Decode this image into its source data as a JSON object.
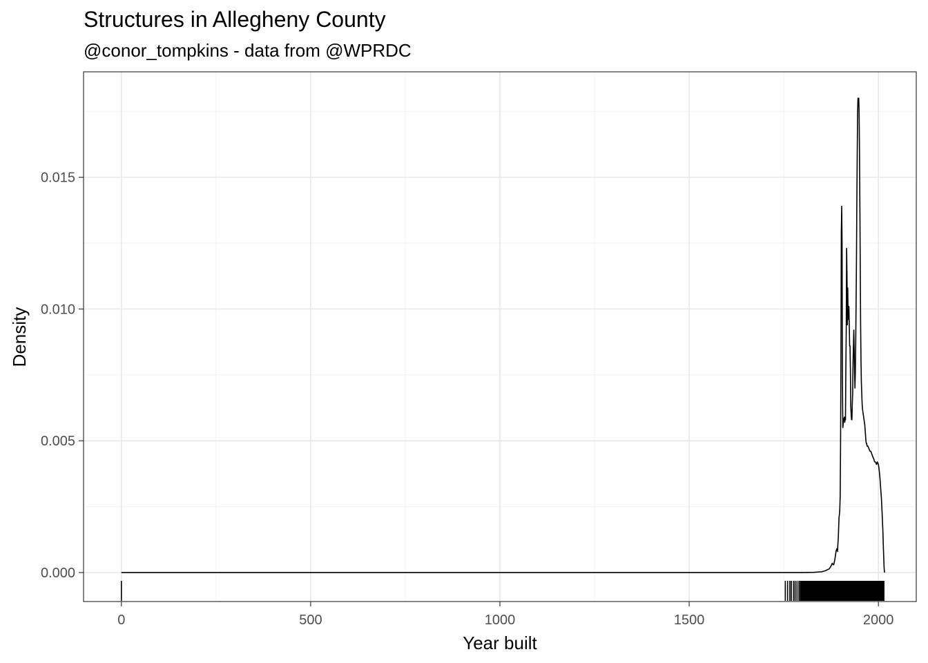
{
  "chart_data": {
    "type": "area",
    "title": "Structures in Allegheny County",
    "subtitle": "@conor_tompkins - data from @WPRDC",
    "xlabel": "Year built",
    "ylabel": "Density",
    "xlim": [
      -100,
      2100
    ],
    "ylim": [
      -0.0011,
      0.019
    ],
    "x_ticks": [
      0,
      500,
      1000,
      1500,
      2000
    ],
    "x_tick_labels": [
      "0",
      "500",
      "1000",
      "1500",
      "2000"
    ],
    "y_ticks": [
      0.0,
      0.005,
      0.01,
      0.015
    ],
    "y_tick_labels": [
      "0.000",
      "0.005",
      "0.010",
      "0.015"
    ],
    "grid": true,
    "legend": "none",
    "line_color": "#000000",
    "density": {
      "x": [
        0,
        1800,
        1830,
        1850,
        1860,
        1870,
        1875,
        1878,
        1880,
        1882,
        1885,
        1888,
        1890,
        1892,
        1893,
        1894,
        1895,
        1896,
        1897,
        1898,
        1899,
        1900,
        1901,
        1902,
        1903,
        1904,
        1905,
        1906,
        1908,
        1910,
        1911,
        1912,
        1913,
        1914,
        1915,
        1916,
        1917,
        1918,
        1919,
        1920,
        1921,
        1922,
        1923,
        1924,
        1925,
        1926,
        1927,
        1928,
        1929,
        1930,
        1931,
        1932,
        1933,
        1935,
        1937,
        1938,
        1939,
        1940,
        1941,
        1942,
        1943,
        1944,
        1945,
        1946,
        1947,
        1948,
        1949,
        1950,
        1951,
        1952,
        1953,
        1954,
        1955,
        1956,
        1957,
        1958,
        1959,
        1960,
        1961,
        1962,
        1963,
        1964,
        1965,
        1966,
        1967,
        1968,
        1969,
        1970,
        1972,
        1975,
        1978,
        1980,
        1985,
        1988,
        1990,
        1992,
        1995,
        1997,
        2000,
        2002,
        2004,
        2006,
        2008,
        2010,
        2012,
        2013,
        2014,
        2015,
        2016
      ],
      "y": [
        0,
        0,
        1e-05,
        3e-05,
        7e-05,
        0.00014,
        0.00025,
        0.00035,
        0.0003,
        0.0003,
        0.0005,
        0.0008,
        0.0009,
        0.0008,
        0.0011,
        0.0013,
        0.0017,
        0.0021,
        0.0022,
        0.0024,
        0.0029,
        0.0048,
        0.0082,
        0.0129,
        0.0139,
        0.0125,
        0.0071,
        0.0055,
        0.0058,
        0.0059,
        0.0057,
        0.0058,
        0.0058,
        0.0078,
        0.0092,
        0.0123,
        0.0113,
        0.0094,
        0.0108,
        0.0097,
        0.0096,
        0.0101,
        0.0094,
        0.0086,
        0.0086,
        0.0077,
        0.0063,
        0.006,
        0.0058,
        0.0058,
        0.0064,
        0.0068,
        0.008,
        0.0092,
        0.0076,
        0.007,
        0.0076,
        0.0086,
        0.0102,
        0.0118,
        0.014,
        0.0158,
        0.0174,
        0.018,
        0.018,
        0.018,
        0.0175,
        0.016,
        0.014,
        0.0117,
        0.0094,
        0.008,
        0.0072,
        0.0068,
        0.0064,
        0.0062,
        0.0061,
        0.006,
        0.0059,
        0.0058,
        0.0057,
        0.0056,
        0.0054,
        0.0052,
        0.005,
        0.0049,
        0.0049,
        0.0048,
        0.0048,
        0.0047,
        0.0046,
        0.0046,
        0.0044,
        0.0043,
        0.0042,
        0.0042,
        0.0041,
        0.0042,
        0.0041,
        0.0039,
        0.0036,
        0.0032,
        0.0028,
        0.0022,
        0.0015,
        0.001,
        0.0006,
        0.0002,
        0
      ]
    },
    "rug_isolated_x": [
      0,
      1754,
      1760,
      1766,
      1770,
      1776,
      1780,
      1785,
      1790
    ],
    "rug_dense_range": [
      1792,
      2016
    ]
  }
}
